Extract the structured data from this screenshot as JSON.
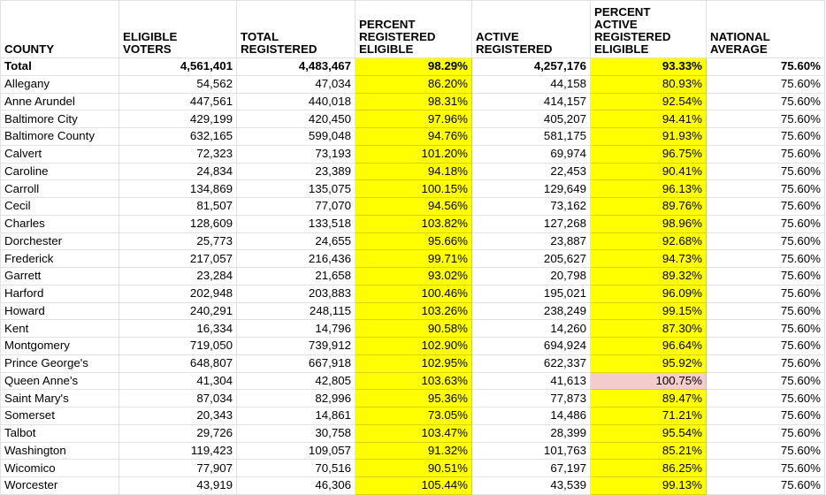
{
  "colors": {
    "highlight": "#ffff00",
    "flag": "#f4cccc"
  },
  "headers": [
    "COUNTY",
    "ELIGIBLE\nVOTERS",
    "TOTAL\nREGISTERED",
    "PERCENT\nREGISTERED\nELIGIBLE",
    "ACTIVE\nREGISTERED",
    "PERCENT\nACTIVE\nREGISTERED\nELIGIBLE",
    "NATIONAL\nAVERAGE"
  ],
  "highlight_columns": [
    3,
    5
  ],
  "rows": [
    {
      "cells": [
        "Total",
        "4,561,401",
        "4,483,467",
        "98.29%",
        "4,257,176",
        "93.33%",
        "75.60%"
      ],
      "total": true
    },
    {
      "cells": [
        "Allegany",
        "54,562",
        "47,034",
        "86.20%",
        "44,158",
        "80.93%",
        "75.60%"
      ]
    },
    {
      "cells": [
        "Anne Arundel",
        "447,561",
        "440,018",
        "98.31%",
        "414,157",
        "92.54%",
        "75.60%"
      ]
    },
    {
      "cells": [
        "Baltimore City",
        "429,199",
        "420,450",
        "97.96%",
        "405,207",
        "94.41%",
        "75.60%"
      ]
    },
    {
      "cells": [
        "Baltimore County",
        "632,165",
        "599,048",
        "94.76%",
        "581,175",
        "91.93%",
        "75.60%"
      ]
    },
    {
      "cells": [
        "Calvert",
        "72,323",
        "73,193",
        "101.20%",
        "69,974",
        "96.75%",
        "75.60%"
      ]
    },
    {
      "cells": [
        "Caroline",
        "24,834",
        "23,389",
        "94.18%",
        "22,453",
        "90.41%",
        "75.60%"
      ]
    },
    {
      "cells": [
        "Carroll",
        "134,869",
        "135,075",
        "100.15%",
        "129,649",
        "96.13%",
        "75.60%"
      ]
    },
    {
      "cells": [
        "Cecil",
        "81,507",
        "77,070",
        "94.56%",
        "73,162",
        "89.76%",
        "75.60%"
      ]
    },
    {
      "cells": [
        "Charles",
        "128,609",
        "133,518",
        "103.82%",
        "127,268",
        "98.96%",
        "75.60%"
      ]
    },
    {
      "cells": [
        "Dorchester",
        "25,773",
        "24,655",
        "95.66%",
        "23,887",
        "92.68%",
        "75.60%"
      ]
    },
    {
      "cells": [
        "Frederick",
        "217,057",
        "216,436",
        "99.71%",
        "205,627",
        "94.73%",
        "75.60%"
      ]
    },
    {
      "cells": [
        "Garrett",
        "23,284",
        "21,658",
        "93.02%",
        "20,798",
        "89.32%",
        "75.60%"
      ]
    },
    {
      "cells": [
        "Harford",
        "202,948",
        "203,883",
        "100.46%",
        "195,021",
        "96.09%",
        "75.60%"
      ]
    },
    {
      "cells": [
        "Howard",
        "240,291",
        "248,115",
        "103.26%",
        "238,249",
        "99.15%",
        "75.60%"
      ]
    },
    {
      "cells": [
        "Kent",
        "16,334",
        "14,796",
        "90.58%",
        "14,260",
        "87.30%",
        "75.60%"
      ]
    },
    {
      "cells": [
        "Montgomery",
        "719,050",
        "739,912",
        "102.90%",
        "694,924",
        "96.64%",
        "75.60%"
      ]
    },
    {
      "cells": [
        "Prince George's",
        "648,807",
        "667,918",
        "102.95%",
        "622,337",
        "95.92%",
        "75.60%"
      ]
    },
    {
      "cells": [
        "Queen Anne's",
        "41,304",
        "42,805",
        "103.63%",
        "41,613",
        "100.75%",
        "75.60%"
      ],
      "flag_column": 5
    },
    {
      "cells": [
        "Saint Mary's",
        "87,034",
        "82,996",
        "95.36%",
        "77,873",
        "89.47%",
        "75.60%"
      ]
    },
    {
      "cells": [
        "Somerset",
        "20,343",
        "14,861",
        "73.05%",
        "14,486",
        "71.21%",
        "75.60%"
      ]
    },
    {
      "cells": [
        "Talbot",
        "29,726",
        "30,758",
        "103.47%",
        "28,399",
        "95.54%",
        "75.60%"
      ]
    },
    {
      "cells": [
        "Washington",
        "119,423",
        "109,057",
        "91.32%",
        "101,763",
        "85.21%",
        "75.60%"
      ]
    },
    {
      "cells": [
        "Wicomico",
        "77,907",
        "70,516",
        "90.51%",
        "67,197",
        "86.25%",
        "75.60%"
      ]
    },
    {
      "cells": [
        "Worcester",
        "43,919",
        "46,306",
        "105.44%",
        "43,539",
        "99.13%",
        "75.60%"
      ]
    }
  ]
}
